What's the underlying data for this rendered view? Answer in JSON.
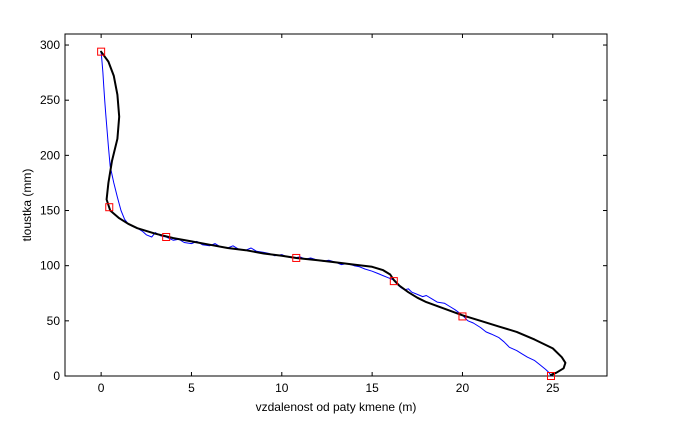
{
  "chart_data": {
    "type": "line",
    "title": "",
    "xlabel": "vzdalenost od paty kmene (m)",
    "ylabel": "tloustka (mm)",
    "xlim": [
      -2,
      28
    ],
    "ylim": [
      0,
      310
    ],
    "xticks": [
      "0",
      "5",
      "10",
      "15",
      "20",
      "25"
    ],
    "yticks": [
      "0",
      "50",
      "100",
      "150",
      "200",
      "250",
      "300"
    ],
    "grid": false,
    "legend": "none",
    "colors": {
      "measured": "#0000ff",
      "fitted": "#000000",
      "markers": "#ff0000"
    },
    "series": [
      {
        "role": "measured",
        "x": [
          0.0,
          0.05,
          0.1,
          0.15,
          0.2,
          0.25,
          0.3,
          0.35,
          0.4,
          0.5,
          0.7,
          0.9,
          1.1,
          1.3,
          1.5,
          1.7,
          2.0,
          2.3,
          2.5,
          2.8,
          3.0,
          3.3,
          3.6,
          4.0,
          4.3,
          4.6,
          5.0,
          5.3,
          5.6,
          6.0,
          6.3,
          6.6,
          7.0,
          7.3,
          7.6,
          8.0,
          8.3,
          8.6,
          9.0,
          9.3,
          9.6,
          10.0,
          10.3,
          10.7,
          11.0,
          11.3,
          11.6,
          12.0,
          12.3,
          12.6,
          13.0,
          13.3,
          13.6,
          14.0,
          14.3,
          14.6,
          15.0,
          15.3,
          15.6,
          15.9,
          16.2,
          16.4,
          16.6,
          16.8,
          17.0,
          17.2,
          17.5,
          17.8,
          18.0,
          18.3,
          18.6,
          19.0,
          19.3,
          19.6,
          20.0,
          20.3,
          20.6,
          21.0,
          21.3,
          21.6,
          22.0,
          22.3,
          22.6,
          23.0,
          23.3,
          23.6,
          24.0,
          24.3,
          24.6,
          24.8,
          24.9
        ],
        "y": [
          294,
          285,
          275,
          262,
          250,
          238,
          228,
          218,
          208,
          190,
          175,
          162,
          150,
          142,
          138,
          136,
          134,
          131,
          128,
          126,
          130,
          127,
          126,
          123,
          124,
          121,
          120,
          122,
          119,
          118,
          120,
          117,
          116,
          118,
          115,
          114,
          116,
          113,
          112,
          111,
          109,
          110,
          108,
          107,
          108,
          106,
          107,
          105,
          104,
          105,
          103,
          101,
          102,
          100,
          99,
          97,
          95,
          93,
          91,
          89,
          87,
          83,
          80,
          78,
          79,
          76,
          74,
          72,
          73,
          70,
          67,
          66,
          63,
          60,
          55,
          50,
          48,
          44,
          40,
          38,
          35,
          31,
          26,
          23,
          20,
          17,
          14,
          10,
          6,
          3,
          0
        ]
      },
      {
        "role": "fitted",
        "x": [
          0.0,
          0.4,
          0.7,
          0.9,
          1.0,
          0.9,
          0.6,
          0.4,
          0.3,
          0.4,
          0.5,
          1.0,
          1.5,
          2.0,
          3.0,
          4.0,
          5.0,
          6.0,
          7.0,
          8.0,
          9.0,
          10.0,
          10.8,
          12.0,
          13.0,
          14.0,
          15.0,
          15.6,
          16.0,
          16.2,
          16.5,
          17.0,
          17.5,
          18.0,
          19.0,
          20.0,
          21.0,
          22.0,
          23.0,
          24.0,
          25.0,
          25.5,
          25.7,
          25.6,
          25.2,
          24.9
        ],
        "y": [
          294,
          285,
          272,
          255,
          235,
          215,
          195,
          175,
          160,
          155,
          150,
          143,
          138,
          134,
          129,
          125,
          122,
          119,
          116,
          114,
          111,
          109,
          107,
          105,
          103,
          101,
          99,
          96,
          92,
          87,
          82,
          76,
          71,
          67,
          61,
          55,
          50,
          45,
          40,
          33,
          25,
          17,
          12,
          7,
          3,
          1
        ]
      },
      {
        "role": "markers",
        "x": [
          0.0,
          0.45,
          3.6,
          10.8,
          16.2,
          20.0,
          24.9
        ],
        "y": [
          294,
          153,
          126,
          107,
          86,
          54,
          0
        ]
      }
    ]
  }
}
